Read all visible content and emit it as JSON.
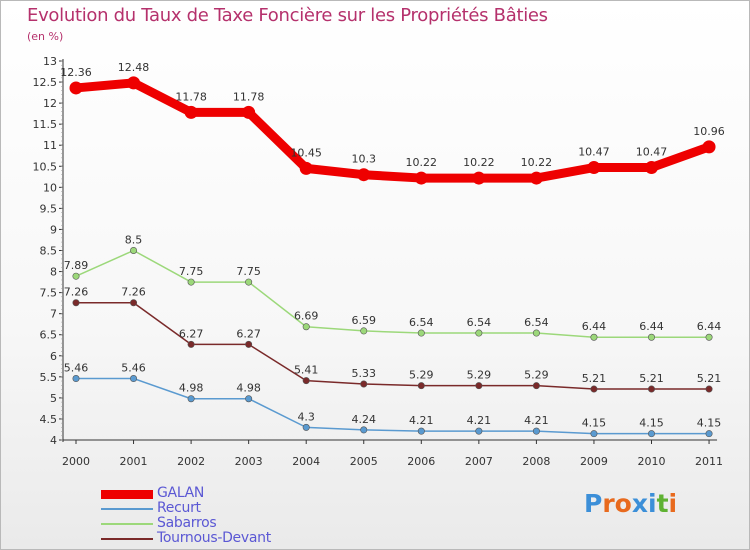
{
  "title": "Evolution du Taux de Taxe Foncière sur les Propriétés Bâties",
  "unit": "(en %)",
  "logo": {
    "letters": [
      "P",
      "r",
      "o",
      "x",
      "i",
      "t",
      "i"
    ],
    "colors": [
      "#3c8fd8",
      "#e86a1e",
      "#e86a1e",
      "#3c8fd8",
      "#3c8fd8",
      "#5fb233",
      "#e86a1e"
    ]
  },
  "chart_data": {
    "type": "line",
    "title": "Evolution du Taux de Taxe Foncière sur les Propriétés Bâties",
    "ylabel": "(en %)",
    "xlabel": "",
    "x": [
      "2000",
      "2001",
      "2002",
      "2003",
      "2004",
      "2005",
      "2006",
      "2007",
      "2008",
      "2009",
      "2010",
      "2011"
    ],
    "ylim": [
      4,
      13
    ],
    "yticks": [
      "4",
      "4.5",
      "5",
      "5.5",
      "6",
      "6.5",
      "7",
      "7.5",
      "8",
      "8.5",
      "9",
      "9.5",
      "10",
      "10.5",
      "11",
      "11.5",
      "12",
      "12.5",
      "13"
    ],
    "grid": false,
    "legend_position": "bottom-left",
    "series": [
      {
        "name": "GALAN",
        "color": "#ee0000",
        "values": [
          12.36,
          12.48,
          11.78,
          11.78,
          10.45,
          10.3,
          10.22,
          10.22,
          10.22,
          10.47,
          10.47,
          10.96
        ],
        "labels": [
          "12.36",
          "12.48",
          "11.78",
          "11.78",
          "10.45",
          "10.3",
          "10.22",
          "10.22",
          "10.22",
          "10.47",
          "10.47",
          "10.96"
        ]
      },
      {
        "name": "Recurt",
        "color": "#5a9ad0",
        "values": [
          5.46,
          5.46,
          4.98,
          4.98,
          4.3,
          4.24,
          4.21,
          4.21,
          4.21,
          4.15,
          4.15,
          4.15
        ],
        "labels": [
          "5.46",
          "5.46",
          "4.98",
          "4.98",
          "4.3",
          "4.24",
          "4.21",
          "4.21",
          "4.21",
          "4.15",
          "4.15",
          "4.15"
        ]
      },
      {
        "name": "Sabarros",
        "color": "#9cd87a",
        "values": [
          7.89,
          8.5,
          7.75,
          7.75,
          6.69,
          6.59,
          6.54,
          6.54,
          6.54,
          6.44,
          6.44,
          6.44
        ],
        "labels": [
          "7.89",
          "8.5",
          "7.75",
          "7.75",
          "6.69",
          "6.59",
          "6.54",
          "6.54",
          "6.54",
          "6.44",
          "6.44",
          "6.44"
        ]
      },
      {
        "name": "Tournous-Devant",
        "color": "#7a2a2a",
        "values": [
          7.26,
          7.26,
          6.27,
          6.27,
          5.41,
          5.33,
          5.29,
          5.29,
          5.29,
          5.21,
          5.21,
          5.21
        ],
        "labels": [
          "7.26",
          "7.26",
          "6.27",
          "6.27",
          "5.41",
          "5.33",
          "5.29",
          "5.29",
          "5.29",
          "5.21",
          "5.21",
          "5.21"
        ]
      }
    ]
  }
}
